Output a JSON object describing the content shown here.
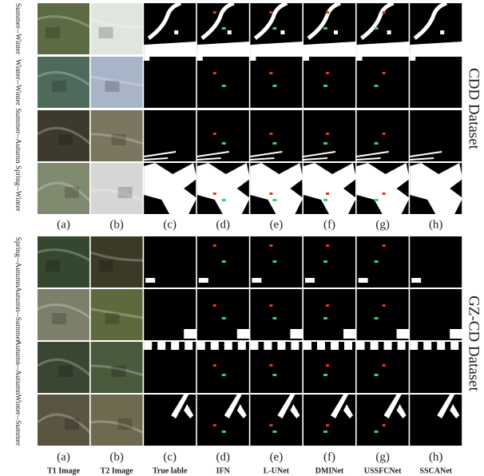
{
  "panels": [
    {
      "label": "CDD Dataset",
      "rows": [
        "Summer--Winter",
        "Winter--Winter",
        "Summer--Autumn",
        "Spring--Winter"
      ],
      "column_letters": [
        "(a)",
        "(b)",
        "(c)",
        "(d)",
        "(e)",
        "(f)",
        "(g)",
        "(h)"
      ]
    },
    {
      "label": "GZ-CD Dataset",
      "rows": [
        "Spring--Autumn",
        "Autumn--Summer",
        "Autumn--Autumn",
        "Winter--Summer"
      ],
      "column_letters": [
        "(a)",
        "(b)",
        "(c)",
        "(d)",
        "(e)",
        "(f)",
        "(g)",
        "(h)"
      ]
    }
  ],
  "column_names": [
    "T1 Image",
    "T2 Image",
    "True lable",
    "IFN",
    "L-UNet",
    "DMINet",
    "USSFCNet",
    "SSCANet"
  ]
}
